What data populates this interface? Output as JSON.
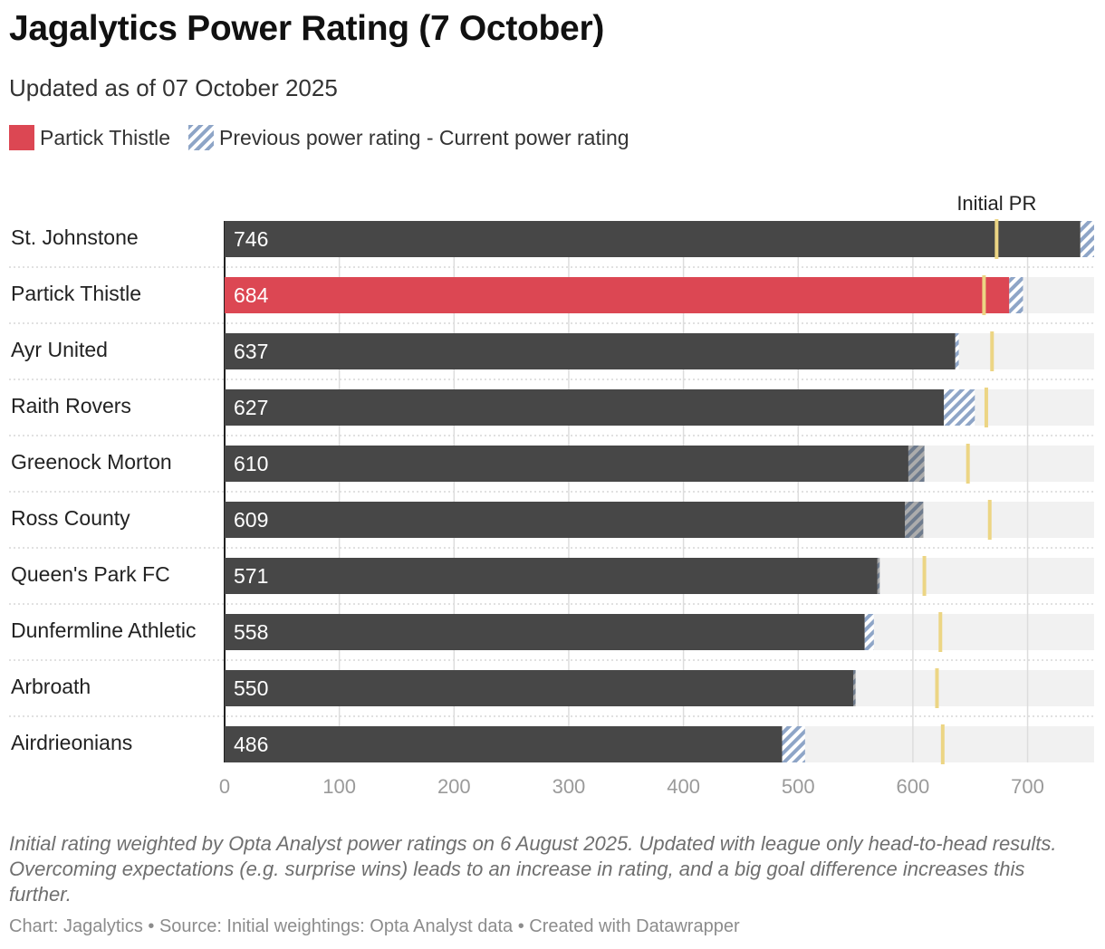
{
  "header": {
    "title": "Jagalytics Power Rating (7 October)",
    "subtitle": "Updated as of 07 October 2025"
  },
  "legend": {
    "highlight_label": "Partick Thistle",
    "change_label": "Previous power rating - Current power rating"
  },
  "colors": {
    "bar": "#474747",
    "highlight": "#dc4753",
    "change_hatch": "#8ea5c7",
    "initial_marker": "#ecd584",
    "track": "#f1f1f1"
  },
  "chart_data": {
    "type": "bar",
    "orientation": "horizontal",
    "categories": [
      "St. Johnstone",
      "Partick Thistle",
      "Ayr United",
      "Raith Rovers",
      "Greenock Morton",
      "Ross County",
      "Queen's Park FC",
      "Dunfermline Athletic",
      "Arbroath",
      "Airdrieonians"
    ],
    "highlight": "Partick Thistle",
    "series": [
      {
        "name": "Current power rating",
        "values": [
          746,
          684,
          637,
          627,
          610,
          609,
          571,
          558,
          550,
          486
        ]
      },
      {
        "name": "Previous power rating",
        "values": [
          758,
          696,
          640,
          654,
          596,
          593,
          569,
          566,
          548,
          506
        ]
      },
      {
        "name": "Initial PR",
        "values": [
          673,
          662,
          669,
          664,
          648,
          667,
          610,
          624,
          621,
          626
        ]
      }
    ],
    "xlim": [
      0,
      758
    ],
    "xticks": [
      0,
      100,
      200,
      300,
      400,
      500,
      600,
      700
    ],
    "annotation": "Initial PR",
    "xlabel": "",
    "ylabel": ""
  },
  "footer": {
    "note": "Initial rating weighted by Opta Analyst power ratings on 6 August 2025. Updated with league only head-to-head results. Overcoming expectations (e.g. surprise wins) leads to an increase in rating, and a big goal difference increases this further.",
    "credit": "Chart: Jagalytics • Source: Initial weightings: Opta Analyst data • Created with Datawrapper"
  }
}
